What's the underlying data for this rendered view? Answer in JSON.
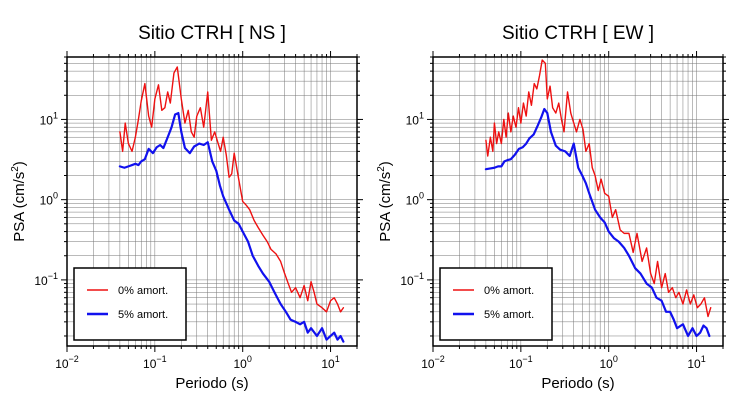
{
  "chart_data": [
    {
      "type": "line",
      "title": "Sitio CTRH [ NS ]",
      "xlabel": "Periodo (s)",
      "ylabel_main": "PSA (cm/s",
      "ylabel_sup": "2",
      "ylabel_end": ")",
      "xscale": "log",
      "yscale": "log",
      "xlim": [
        0.01,
        20
      ],
      "ylim": [
        0.015,
        60
      ],
      "grid": true,
      "legend_position": "bottom-left",
      "x_ticks": [
        {
          "value": 0.01,
          "base": "10",
          "exp": "−2"
        },
        {
          "value": 0.1,
          "base": "10",
          "exp": "−1"
        },
        {
          "value": 1,
          "base": "10",
          "exp": "0"
        },
        {
          "value": 10,
          "base": "10",
          "exp": "1"
        }
      ],
      "y_ticks": [
        {
          "value": 0.1,
          "base": "10",
          "exp": "−1"
        },
        {
          "value": 1,
          "base": "10",
          "exp": "0"
        },
        {
          "value": 10,
          "base": "10",
          "exp": "1"
        }
      ],
      "series": [
        {
          "name": "0% amort.",
          "color": "#ee1111",
          "x": [
            0.04,
            0.043,
            0.046,
            0.05,
            0.055,
            0.06,
            0.065,
            0.07,
            0.077,
            0.085,
            0.092,
            0.1,
            0.11,
            0.12,
            0.13,
            0.14,
            0.15,
            0.165,
            0.18,
            0.2,
            0.22,
            0.24,
            0.26,
            0.28,
            0.3,
            0.33,
            0.36,
            0.4,
            0.44,
            0.48,
            0.52,
            0.56,
            0.6,
            0.65,
            0.7,
            0.75,
            0.8,
            0.9,
            1.0,
            1.1,
            1.2,
            1.35,
            1.5,
            1.7,
            1.9,
            2.1,
            2.4,
            2.7,
            3.0,
            3.3,
            3.6,
            4.0,
            4.5,
            5.0,
            5.5,
            6.0,
            6.5,
            7.0,
            8.0,
            9.0,
            10.0,
            11.0,
            12.0,
            13.0,
            14.0
          ],
          "y": [
            7,
            4,
            9,
            5,
            4,
            6,
            10,
            17,
            28,
            11,
            8,
            18,
            27,
            13,
            14,
            22,
            16,
            38,
            45,
            18,
            9,
            13,
            7,
            6,
            11,
            14,
            8,
            22,
            5.5,
            7,
            5.2,
            4,
            6,
            3.6,
            1.9,
            2.1,
            3.8,
            1.8,
            0.95,
            0.85,
            0.75,
            0.55,
            0.45,
            0.36,
            0.3,
            0.24,
            0.21,
            0.17,
            0.12,
            0.09,
            0.07,
            0.08,
            0.06,
            0.085,
            0.055,
            0.095,
            0.07,
            0.05,
            0.045,
            0.04,
            0.055,
            0.06,
            0.05,
            0.04,
            0.045
          ]
        },
        {
          "name": "5% amort.",
          "color": "#1111ee",
          "x": [
            0.04,
            0.045,
            0.05,
            0.055,
            0.06,
            0.065,
            0.07,
            0.077,
            0.085,
            0.095,
            0.105,
            0.115,
            0.125,
            0.14,
            0.155,
            0.17,
            0.185,
            0.2,
            0.22,
            0.25,
            0.28,
            0.32,
            0.36,
            0.4,
            0.45,
            0.5,
            0.55,
            0.6,
            0.7,
            0.8,
            0.9,
            1.0,
            1.15,
            1.3,
            1.5,
            1.7,
            2.0,
            2.3,
            2.7,
            3.1,
            3.5,
            4.0,
            4.5,
            5.0,
            5.5,
            6.0,
            7.0,
            8.0,
            9.0,
            10.0,
            11.0,
            12.0,
            13.0,
            14.0
          ],
          "y": [
            2.6,
            2.5,
            2.6,
            2.7,
            2.8,
            2.7,
            3.0,
            3.2,
            4.3,
            3.8,
            4.5,
            4.8,
            4.4,
            6.0,
            8.0,
            11.5,
            12.0,
            7.0,
            4.4,
            3.8,
            4.6,
            5.0,
            4.8,
            5.2,
            3.0,
            2.3,
            1.5,
            1.1,
            0.75,
            0.55,
            0.5,
            0.4,
            0.3,
            0.2,
            0.15,
            0.12,
            0.095,
            0.07,
            0.05,
            0.04,
            0.032,
            0.03,
            0.028,
            0.03,
            0.022,
            0.025,
            0.02,
            0.025,
            0.018,
            0.02,
            0.022,
            0.018,
            0.02,
            0.017
          ]
        }
      ]
    },
    {
      "type": "line",
      "title": "Sitio CTRH [ EW ]",
      "xlabel": "Periodo (s)",
      "ylabel_main": "PSA (cm/s",
      "ylabel_sup": "2",
      "ylabel_end": ")",
      "xscale": "log",
      "yscale": "log",
      "xlim": [
        0.01,
        20
      ],
      "ylim": [
        0.015,
        60
      ],
      "grid": true,
      "legend_position": "bottom-left",
      "x_ticks": [
        {
          "value": 0.01,
          "base": "10",
          "exp": "−2"
        },
        {
          "value": 0.1,
          "base": "10",
          "exp": "−1"
        },
        {
          "value": 1,
          "base": "10",
          "exp": "0"
        },
        {
          "value": 10,
          "base": "10",
          "exp": "1"
        }
      ],
      "y_ticks": [
        {
          "value": 0.1,
          "base": "10",
          "exp": "−1"
        },
        {
          "value": 1,
          "base": "10",
          "exp": "0"
        },
        {
          "value": 10,
          "base": "10",
          "exp": "1"
        }
      ],
      "series": [
        {
          "name": "0% amort.",
          "color": "#ee1111",
          "x": [
            0.04,
            0.042,
            0.045,
            0.048,
            0.05,
            0.053,
            0.056,
            0.06,
            0.064,
            0.068,
            0.072,
            0.077,
            0.082,
            0.088,
            0.094,
            0.1,
            0.107,
            0.115,
            0.123,
            0.132,
            0.142,
            0.152,
            0.163,
            0.175,
            0.19,
            0.2,
            0.215,
            0.23,
            0.25,
            0.27,
            0.29,
            0.31,
            0.34,
            0.37,
            0.4,
            0.43,
            0.47,
            0.51,
            0.55,
            0.6,
            0.65,
            0.7,
            0.76,
            0.82,
            0.9,
            1.0,
            1.1,
            1.2,
            1.35,
            1.5,
            1.7,
            1.9,
            2.1,
            2.4,
            2.7,
            3.0,
            3.3,
            3.6,
            4.0,
            4.4,
            4.8,
            5.3,
            5.8,
            6.3,
            7.0,
            7.7,
            8.5,
            9.3,
            10.2,
            11.2,
            12.3,
            13.5,
            14.5
          ],
          "y": [
            5.5,
            3.5,
            6,
            4,
            9,
            5,
            7,
            5,
            10,
            6,
            12,
            7,
            11,
            8,
            14,
            9,
            16,
            11,
            22,
            15,
            28,
            24,
            35,
            55,
            50,
            18,
            26,
            14,
            12,
            16,
            10,
            7,
            22,
            12,
            9,
            7,
            10,
            7.5,
            4,
            5,
            2.5,
            2,
            1.3,
            1.8,
            1.2,
            1.1,
            0.6,
            0.75,
            0.42,
            0.38,
            0.38,
            0.22,
            0.38,
            0.17,
            0.25,
            0.12,
            0.09,
            0.17,
            0.08,
            0.12,
            0.07,
            0.08,
            0.06,
            0.07,
            0.05,
            0.075,
            0.05,
            0.065,
            0.045,
            0.05,
            0.06,
            0.035,
            0.045
          ]
        },
        {
          "name": "5% amort.",
          "color": "#1111ee",
          "x": [
            0.04,
            0.045,
            0.05,
            0.055,
            0.06,
            0.065,
            0.07,
            0.077,
            0.085,
            0.095,
            0.105,
            0.115,
            0.125,
            0.14,
            0.155,
            0.17,
            0.185,
            0.2,
            0.22,
            0.25,
            0.28,
            0.32,
            0.36,
            0.4,
            0.45,
            0.5,
            0.55,
            0.6,
            0.7,
            0.8,
            0.9,
            1.0,
            1.15,
            1.3,
            1.5,
            1.7,
            2.0,
            2.3,
            2.7,
            3.1,
            3.5,
            4.0,
            4.5,
            5.0,
            5.5,
            6.0,
            7.0,
            8.0,
            9.0,
            10.0,
            11.0,
            12.0,
            13.0,
            14.0
          ],
          "y": [
            2.4,
            2.45,
            2.5,
            2.6,
            2.6,
            3.0,
            3.1,
            3.2,
            3.6,
            4.3,
            4.5,
            5.0,
            5.8,
            6.5,
            8.3,
            10.5,
            13.5,
            12.0,
            7.0,
            4.7,
            4.2,
            4.0,
            3.5,
            5.0,
            2.5,
            2.0,
            1.6,
            1.2,
            0.75,
            0.6,
            0.52,
            0.4,
            0.33,
            0.3,
            0.25,
            0.2,
            0.14,
            0.12,
            0.09,
            0.08,
            0.06,
            0.055,
            0.04,
            0.04,
            0.032,
            0.025,
            0.028,
            0.02,
            0.025,
            0.02,
            0.022,
            0.027,
            0.025,
            0.02
          ]
        }
      ]
    }
  ]
}
